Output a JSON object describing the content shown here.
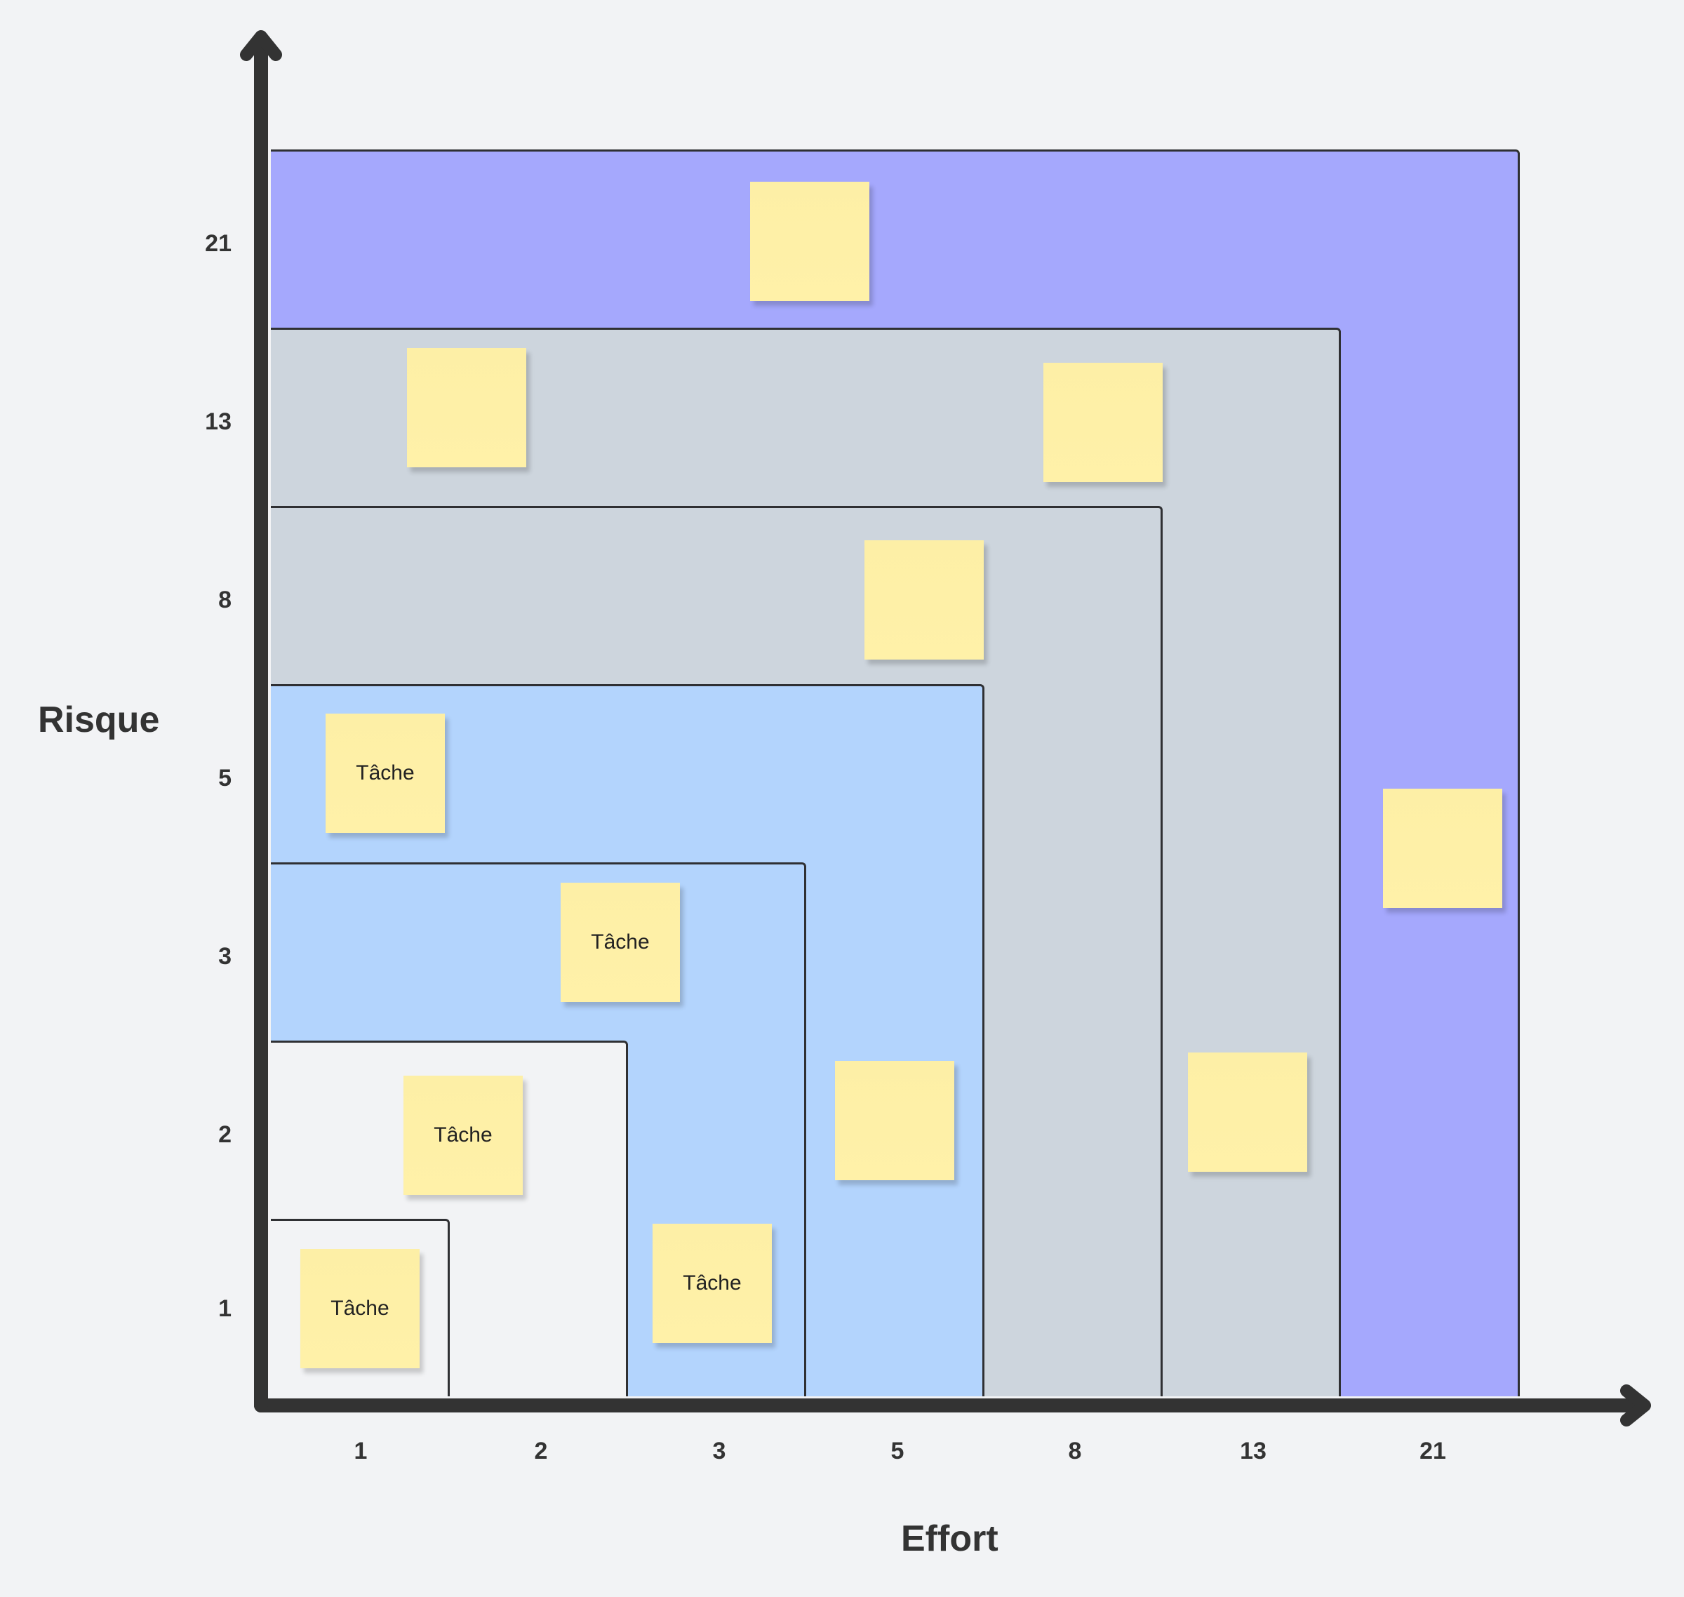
{
  "colors": {
    "background": "#f2f3f5",
    "zone_21": "#a5a8fd",
    "zone_13": "#cdd5dd",
    "zone_8": "#cdd5dd",
    "zone_5": "#b3d4fd",
    "zone_3": "#b3d4fd",
    "zone_2": "#f2f3f5",
    "zone_1": "#f2f3f5",
    "note": "#fff1a8",
    "axis": "#333333"
  },
  "axes": {
    "x_title": "Effort",
    "y_title": "Risque",
    "x_ticks": [
      "1",
      "2",
      "3",
      "5",
      "8",
      "13",
      "21"
    ],
    "y_ticks": [
      "21",
      "13",
      "8",
      "5",
      "3",
      "2",
      "1"
    ]
  },
  "zones": [
    "1",
    "2",
    "3",
    "5",
    "8",
    "13",
    "21"
  ],
  "notes": [
    {
      "label": ""
    },
    {
      "label": ""
    },
    {
      "label": ""
    },
    {
      "label": ""
    },
    {
      "label": "Tâche"
    },
    {
      "label": "Tâche"
    },
    {
      "label": ""
    },
    {
      "label": ""
    },
    {
      "label": "Tâche"
    },
    {
      "label": "Tâche"
    },
    {
      "label": "Tâche"
    }
  ]
}
